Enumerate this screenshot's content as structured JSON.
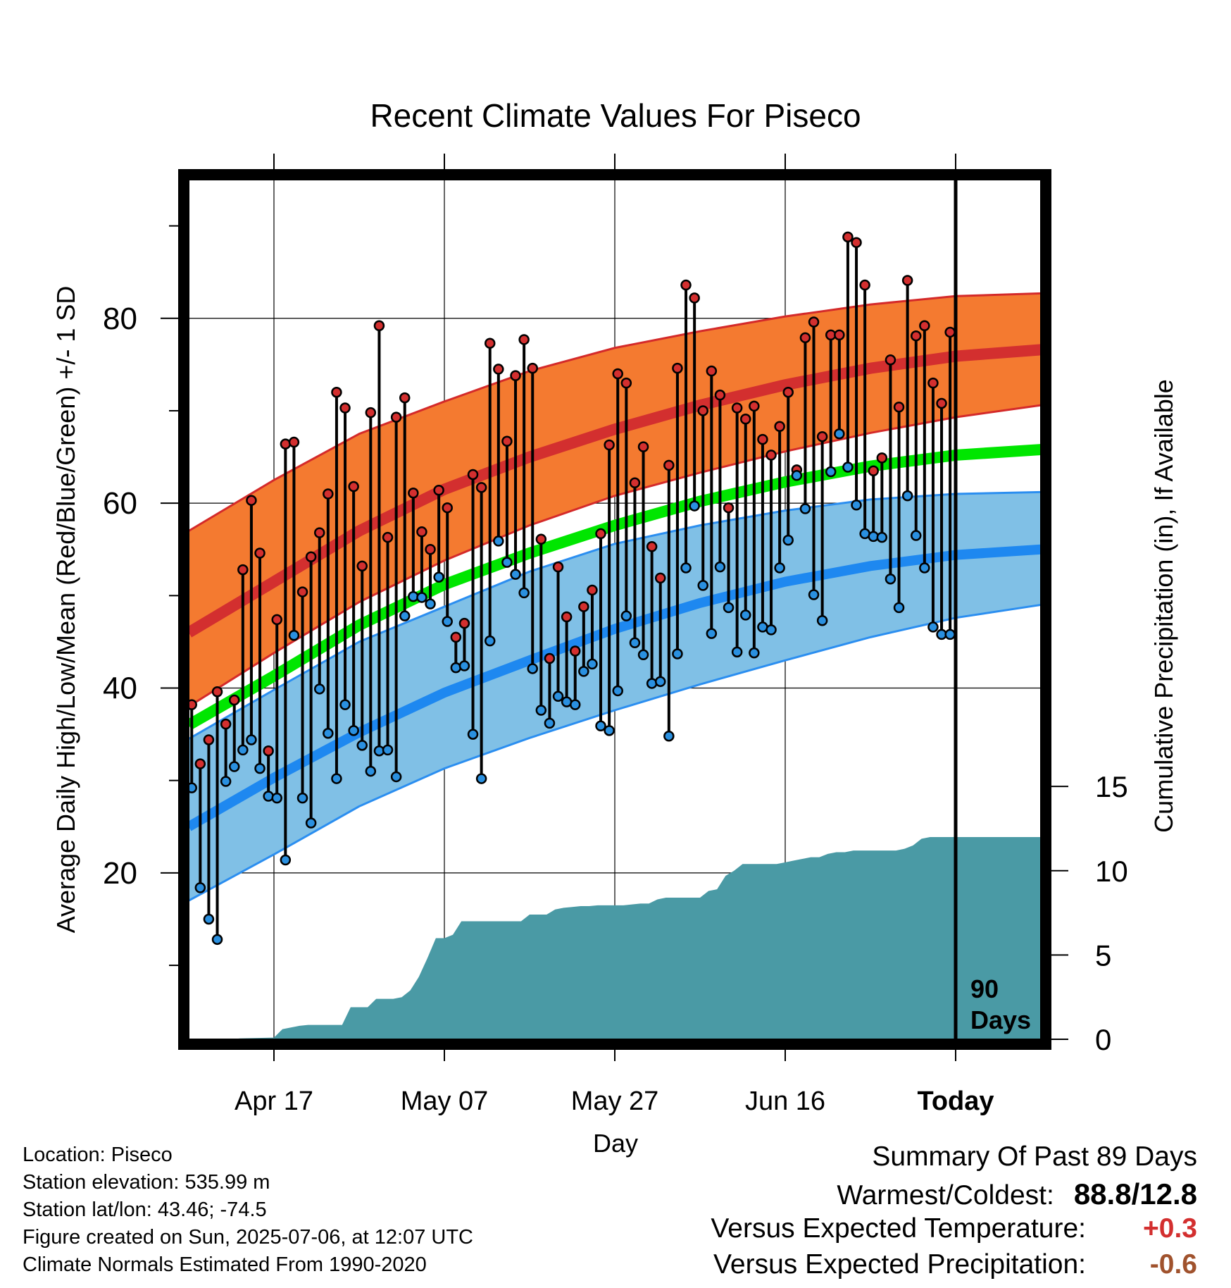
{
  "chart_data": {
    "type": "line",
    "title": "Recent Climate Values For Piseco",
    "xlabel": "Day",
    "ylabel": "Average Daily High/Low/Mean (Red/Blue/Green) +/- 1 SD",
    "y2label": "Cumulative Precipitation (in), If Available",
    "x_tick_labels": [
      "Apr 17",
      "May 07",
      "May 27",
      "Jun 16",
      "Today"
    ],
    "x_tick_days": [
      10,
      30,
      50,
      70,
      90
    ],
    "x_range": [
      0,
      100
    ],
    "y_range": [
      2,
      95
    ],
    "y_ticks": [
      20,
      40,
      60,
      80
    ],
    "y_ticks_labeled": [
      "20",
      "40",
      "60",
      "80"
    ],
    "y2_range": [
      0,
      51
    ],
    "y2_ticks": [
      0,
      5,
      10,
      15
    ],
    "y2_ticks_labeled": [
      "0",
      "5",
      "10",
      "15"
    ],
    "grid": true,
    "today_marker_label": "90\nDays",
    "colors": {
      "high_band": "#f47a30",
      "high_band_edge": "#d42a2a",
      "high_mean": "#d32f2f",
      "low_band": "#80c0e6",
      "low_band_edge": "#2b8ef0",
      "low_mean": "#1e88f0",
      "mean": "#00e600",
      "precip": "#4a9aa5",
      "high_dot": "#d32f2f",
      "low_dot": "#2a90e0"
    },
    "normals": {
      "days": [
        0,
        10,
        20,
        30,
        40,
        50,
        60,
        70,
        80,
        90,
        100
      ],
      "high_mean": [
        46.0,
        51.5,
        57.0,
        61.5,
        65.0,
        68.0,
        70.6,
        72.8,
        74.6,
        75.9,
        76.6
      ],
      "high_sd_upper": [
        57.0,
        62.5,
        67.5,
        71.0,
        74.3,
        76.8,
        78.6,
        80.2,
        81.5,
        82.4,
        82.7
      ],
      "high_sd_lower": [
        38.0,
        43.8,
        49.3,
        53.8,
        57.6,
        60.8,
        63.3,
        65.6,
        67.6,
        69.3,
        70.6
      ],
      "mean": [
        36.0,
        41.3,
        46.8,
        51.2,
        54.6,
        57.6,
        60.2,
        62.3,
        64.0,
        65.2,
        65.8
      ],
      "low_mean": [
        25.0,
        30.3,
        35.2,
        39.5,
        43.0,
        46.4,
        49.2,
        51.5,
        53.2,
        54.4,
        55.0
      ],
      "low_sd_upper": [
        34.5,
        39.8,
        45.0,
        48.8,
        52.6,
        55.6,
        57.6,
        59.2,
        60.4,
        61.0,
        61.2
      ],
      "low_sd_lower": [
        17.0,
        22.0,
        27.2,
        31.3,
        34.6,
        37.6,
        40.4,
        43.0,
        45.5,
        47.6,
        49.0
      ]
    },
    "daily": {
      "days": [
        0,
        1,
        2,
        3,
        4,
        5,
        6,
        7,
        8,
        9,
        10,
        11,
        12,
        13,
        14,
        15,
        16,
        17,
        18,
        19,
        20,
        21,
        22,
        23,
        24,
        25,
        26,
        27,
        28,
        29,
        30,
        31,
        32,
        33,
        34,
        35,
        36,
        37,
        38,
        39,
        40,
        41,
        42,
        43,
        44,
        45,
        46,
        47,
        48,
        49,
        50,
        51,
        52,
        53,
        54,
        55,
        56,
        57,
        58,
        59,
        60,
        61,
        62,
        63,
        64,
        65,
        66,
        67,
        68,
        69,
        70,
        71,
        72,
        73,
        74,
        75,
        76,
        77,
        78,
        79,
        80,
        81,
        82,
        83,
        84,
        85,
        86,
        87,
        88,
        89
      ],
      "high": [
        38.2,
        31.8,
        34.4,
        39.6,
        36.1,
        38.7,
        52.8,
        60.3,
        54.6,
        33.2,
        47.4,
        66.4,
        66.6,
        50.4,
        54.2,
        56.8,
        61.0,
        72.0,
        70.3,
        61.8,
        53.2,
        69.8,
        79.2,
        56.3,
        69.3,
        71.4,
        61.1,
        56.9,
        55.0,
        61.4,
        59.5,
        45.5,
        47.0,
        63.1,
        61.7,
        77.3,
        74.5,
        66.7,
        73.8,
        77.7,
        74.6,
        56.1,
        43.2,
        53.1,
        47.7,
        44.0,
        48.8,
        50.6,
        56.7,
        66.3,
        74.0,
        73.0,
        62.2,
        66.1,
        55.3,
        51.9,
        64.1,
        74.6,
        83.6,
        82.2,
        70.0,
        74.3,
        71.7,
        59.5,
        70.3,
        69.1,
        70.5,
        66.9,
        65.2,
        68.3,
        72.0,
        63.6,
        77.9,
        79.6,
        67.2,
        78.2,
        78.2,
        88.8,
        88.2,
        83.6,
        63.5,
        64.9,
        75.5,
        70.4,
        84.1,
        78.1,
        79.2,
        73.0,
        70.8,
        78.5
      ],
      "low": [
        29.2,
        18.4,
        15.0,
        12.8,
        29.9,
        31.5,
        33.3,
        34.4,
        31.3,
        28.3,
        28.1,
        21.4,
        45.7,
        28.1,
        25.4,
        39.9,
        35.1,
        30.2,
        38.2,
        35.4,
        33.8,
        31.0,
        33.2,
        33.3,
        30.4,
        47.8,
        49.9,
        49.8,
        49.1,
        52.0,
        47.2,
        42.2,
        42.4,
        35.0,
        30.2,
        45.1,
        55.9,
        53.6,
        52.3,
        50.3,
        42.1,
        37.6,
        36.2,
        39.1,
        38.5,
        38.2,
        41.8,
        42.6,
        35.9,
        35.4,
        39.7,
        47.8,
        44.9,
        43.6,
        40.5,
        40.7,
        34.8,
        43.7,
        53.0,
        59.7,
        51.1,
        45.9,
        53.1,
        48.7,
        43.9,
        47.9,
        43.8,
        46.6,
        46.3,
        53.0,
        56.0,
        63.0,
        59.4,
        50.1,
        47.3,
        63.4,
        67.5,
        63.9,
        59.8,
        56.7,
        56.4,
        56.3,
        51.8,
        48.7,
        60.8,
        56.5,
        53.0,
        46.6,
        45.8,
        45.8
      ]
    },
    "precip": {
      "days": [
        0,
        5,
        6,
        10,
        11,
        12,
        13,
        14,
        15,
        16,
        17,
        18,
        19,
        20,
        21,
        22,
        23,
        24,
        25,
        26,
        27,
        28,
        29,
        30,
        31,
        32,
        33,
        34,
        35,
        36,
        37,
        38,
        39,
        40,
        41,
        42,
        43,
        44,
        45,
        46,
        47,
        48,
        49,
        50,
        51,
        52,
        53,
        54,
        55,
        56,
        57,
        58,
        59,
        60,
        61,
        62,
        63,
        64,
        65,
        66,
        67,
        68,
        69,
        70,
        71,
        72,
        73,
        74,
        75,
        76,
        77,
        78,
        79,
        80,
        81,
        82,
        83,
        84,
        85,
        86,
        87,
        88,
        89,
        100
      ],
      "cumulative_in": [
        0,
        0,
        0.05,
        0.1,
        0.6,
        0.7,
        0.8,
        0.85,
        0.85,
        0.85,
        0.85,
        0.85,
        1.9,
        1.9,
        1.9,
        2.4,
        2.4,
        2.4,
        2.5,
        2.9,
        3.7,
        4.8,
        6.0,
        6.0,
        6.2,
        7.0,
        7.0,
        7.0,
        7.0,
        7.0,
        7.0,
        7.0,
        7.0,
        7.4,
        7.4,
        7.4,
        7.7,
        7.8,
        7.85,
        7.9,
        7.9,
        7.95,
        7.95,
        7.95,
        7.95,
        8.0,
        8.05,
        8.05,
        8.3,
        8.4,
        8.4,
        8.4,
        8.4,
        8.4,
        8.8,
        8.9,
        9.7,
        10.0,
        10.4,
        10.4,
        10.4,
        10.4,
        10.4,
        10.5,
        10.6,
        10.7,
        10.8,
        10.8,
        11.0,
        11.1,
        11.1,
        11.2,
        11.2,
        11.2,
        11.2,
        11.2,
        11.2,
        11.3,
        11.5,
        11.9,
        12.0,
        12.0,
        12.0,
        12.0
      ]
    }
  },
  "info": {
    "location": "Location: Piseco",
    "elevation": "Station elevation: 535.99 m",
    "latlon": "Station lat/lon: 43.46; -74.5",
    "created": "Figure created on Sun, 2025-07-06, at 12:07 UTC",
    "normals_note": "Climate Normals Estimated From 1990-2020"
  },
  "summary": {
    "heading": "Summary Of Past 89 Days",
    "warm_cold_label": "Warmest/Coldest:",
    "warm_cold_value": "88.8/12.8",
    "temp_label": "Versus Expected Temperature:",
    "temp_value": "+0.3",
    "temp_color": "#d32f2f",
    "precip_label": "Versus Expected Precipitation:",
    "precip_value": "-0.6",
    "precip_color": "#a0522d"
  }
}
